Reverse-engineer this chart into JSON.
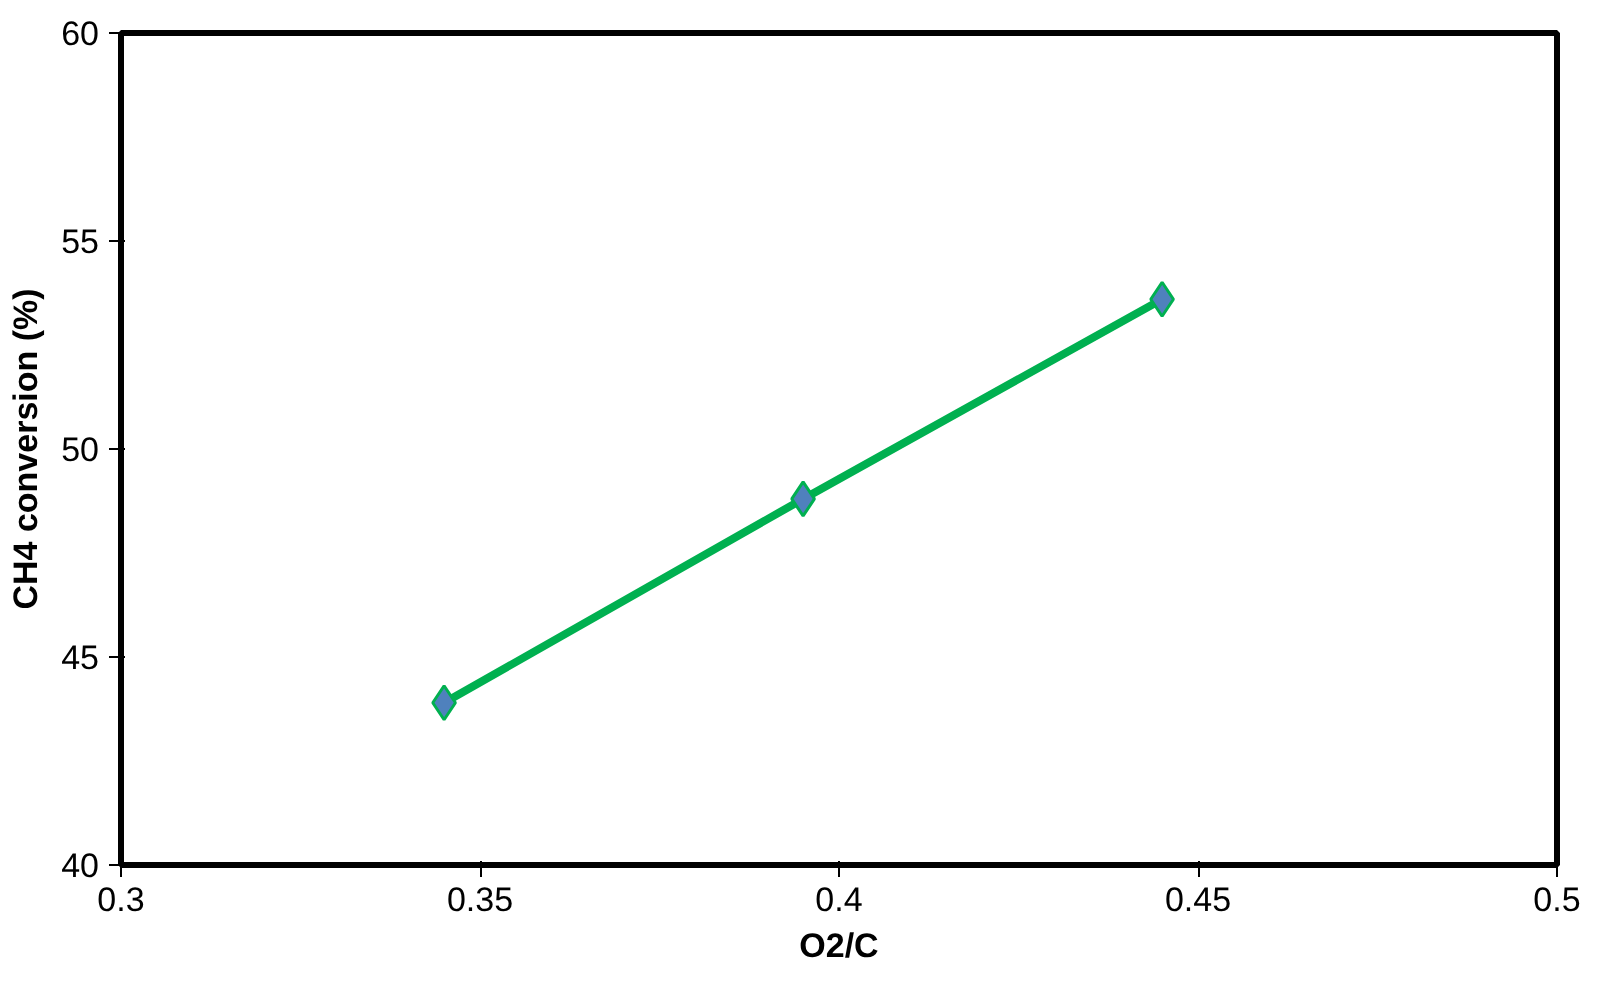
{
  "chart_data": {
    "type": "line",
    "xlabel": "O2/C",
    "ylabel": "CH4 conversion (%)",
    "x": [
      0.345,
      0.395,
      0.445
    ],
    "series": [
      {
        "color": "#00b050",
        "colors": [
          "#4f81bd",
          "#4f81bd",
          "#4f81bd"
        ],
        "values": [
          43.9,
          48.8,
          53.6
        ]
      }
    ],
    "xlim": [
      0.3,
      0.5
    ],
    "xticks": [
      0.3,
      0.35,
      0.4,
      0.45,
      0.5
    ],
    "ylim": [
      40,
      60
    ],
    "yticks": [
      40,
      45,
      50,
      55,
      60
    ],
    "marker": "diamond",
    "line_style": "solid",
    "grid": false
  }
}
